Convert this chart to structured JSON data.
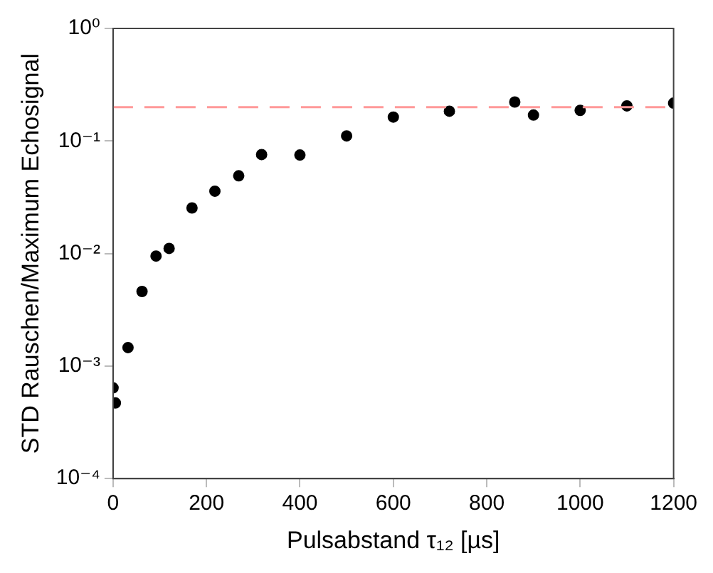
{
  "chart_data": {
    "type": "scatter",
    "xlabel": "Pulsabstand τ₁₂ [µs]",
    "ylabel": "STD Rauschen/Maximum Echosignal",
    "x": [
      0,
      5,
      32,
      62,
      92,
      120,
      169,
      218,
      269,
      318,
      400,
      500,
      600,
      720,
      860,
      900,
      1000,
      1100,
      1200
    ],
    "series": [
      {
        "color": "#000000",
        "values": [
          0.00064,
          0.00047,
          0.00146,
          0.0046,
          0.0095,
          0.0111,
          0.0254,
          0.0358,
          0.049,
          0.0757,
          0.075,
          0.111,
          0.163,
          0.184,
          0.222,
          0.17,
          0.187,
          0.205,
          0.217
        ]
      }
    ],
    "xlim": [
      0,
      1200
    ],
    "xticks": [
      0,
      200,
      400,
      600,
      800,
      1000,
      1200
    ],
    "ylim": [
      0.0001,
      1
    ],
    "log": "y",
    "yticks": [
      {
        "value": 0.0001,
        "label": "10⁻⁴"
      },
      {
        "value": 0.001,
        "label": "10⁻³"
      },
      {
        "value": 0.01,
        "label": "10⁻²"
      },
      {
        "value": 0.1,
        "label": "10⁻¹"
      },
      {
        "value": 1,
        "label": "10⁰"
      }
    ],
    "ref_lines": [
      {
        "axis": "y",
        "value": 0.2,
        "color": "#ff9999",
        "line_style": "dashed"
      }
    ],
    "marker": "circle",
    "grid": false,
    "legend": false
  }
}
